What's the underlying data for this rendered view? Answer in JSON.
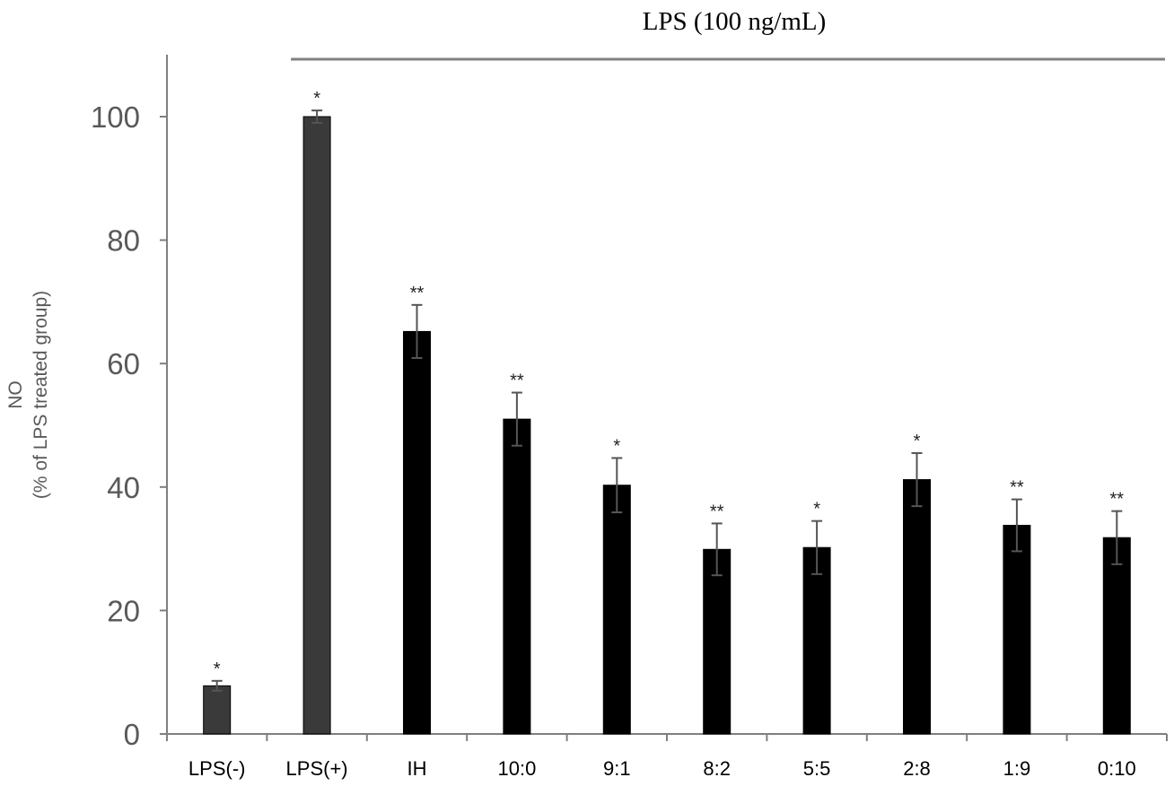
{
  "chart_data": {
    "type": "bar",
    "title": "",
    "xlabel": "",
    "ylabel_line1": "NO",
    "ylabel_line2": "(% of LPS treated group)",
    "ylim": [
      0,
      110
    ],
    "yticks": [
      0,
      20,
      40,
      60,
      80,
      100
    ],
    "grid": false,
    "bracket_label": "LPS (100 ng/mL)",
    "bracket_covers": [
      "LPS(+)",
      "IH",
      "10:0",
      "9:1",
      "8:2",
      "5:5",
      "2:8",
      "1:9",
      "0:10"
    ],
    "categories": [
      "LPS(-)",
      "LPS(+)",
      "IH",
      "10:0",
      "9:1",
      "8:2",
      "5:5",
      "2:8",
      "1:9",
      "0:10"
    ],
    "values": [
      7.8,
      100,
      65.2,
      51.0,
      40.3,
      29.9,
      30.2,
      41.2,
      33.8,
      31.8
    ],
    "errors": [
      0.8,
      1.0,
      4.3,
      4.3,
      4.4,
      4.2,
      4.3,
      4.3,
      4.2,
      4.3
    ],
    "significance": [
      "*",
      "*",
      "**",
      "**",
      "*",
      "**",
      "*",
      "*",
      "**",
      "**"
    ],
    "bar_colors": [
      "#3a3a3a",
      "#3a3a3a",
      "#000000",
      "#000000",
      "#000000",
      "#000000",
      "#000000",
      "#000000",
      "#000000",
      "#000000"
    ],
    "axis_color": "#7f7f7f",
    "text_color": "#595959"
  }
}
